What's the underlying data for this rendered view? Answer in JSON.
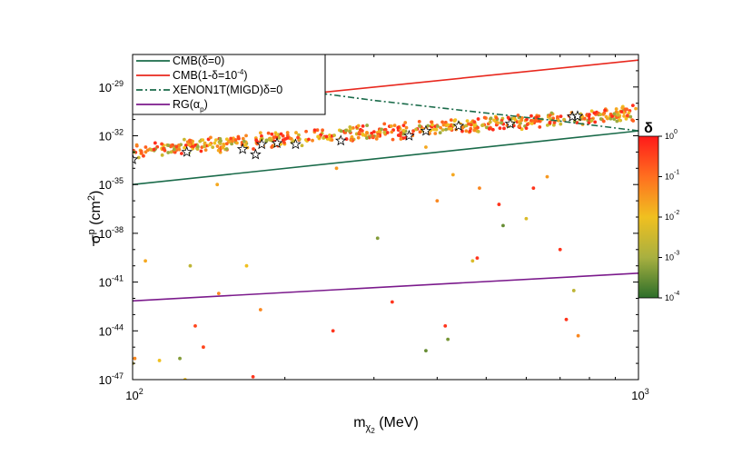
{
  "chart_data": {
    "type": "scatter",
    "title": "",
    "xlabel": {
      "base": "m",
      "sub1": "χ",
      "sub2": "2",
      "rest": " (MeV)"
    },
    "ylabel": {
      "main": "σ",
      "sup": "p",
      "rest": " (cm",
      "unit_sup": "2",
      "close": ")"
    },
    "x_scale": "log",
    "y_scale": "log",
    "xlim": [
      100,
      1000
    ],
    "ylim": [
      1e-47,
      1e-27
    ],
    "x_ticks": [
      {
        "value": 100,
        "base": "10",
        "exp": "2"
      },
      {
        "value": 1000,
        "base": "10",
        "exp": "3"
      }
    ],
    "y_ticks": [
      {
        "value": 1e-47,
        "base": "10",
        "exp": "-47"
      },
      {
        "value": 1e-44,
        "base": "10",
        "exp": "-44"
      },
      {
        "value": 1e-41,
        "base": "10",
        "exp": "-41"
      },
      {
        "value": 1e-38,
        "base": "10",
        "exp": "-38"
      },
      {
        "value": 1e-35,
        "base": "10",
        "exp": "-35"
      },
      {
        "value": 1e-32,
        "base": "10",
        "exp": "-32"
      },
      {
        "value": 1e-29,
        "base": "10",
        "exp": "-29"
      }
    ],
    "grid": false,
    "legend_position": "top-left",
    "lines": [
      {
        "name": {
          "main": "CMB(δ=0)"
        },
        "color": "#1a6b4a",
        "dash": "solid",
        "x": [
          100,
          1000
        ],
        "y": [
          1e-35,
          2e-32
        ]
      },
      {
        "name": {
          "main": "CMB(1-δ=10",
          "sup": "-4",
          "close": ")"
        },
        "color": "#e8281e",
        "dash": "solid",
        "x": [
          100,
          1000
        ],
        "y": [
          3e-31,
          4.5e-28
        ]
      },
      {
        "name": {
          "main": "XENON1T(MIGD)δ=0"
        },
        "color": "#1a6b4a",
        "dash": "dashdot",
        "x": [
          100,
          200,
          300,
          500,
          700,
          1000
        ],
        "y": [
          3e-28,
          8e-30,
          1.5e-30,
          2.5e-31,
          8e-32,
          2e-32
        ]
      },
      {
        "name": {
          "main": "RG(α",
          "sub": "p",
          "close": ")"
        },
        "color": "#7b1a8c",
        "dash": "solid",
        "x": [
          100,
          1000
        ],
        "y": [
          7e-43,
          3.5e-41
        ]
      }
    ],
    "band": {
      "note": "dense scatter band of points color-coded by δ",
      "x_range": [
        100,
        1000
      ],
      "log_y_center_at_xmin": -32.9,
      "log_y_center_at_xmax": -30.6,
      "log_y_spread": 0.55,
      "count": 600
    },
    "scattered_points": [
      {
        "x": 100,
        "y": 1e-46,
        "delta": 0.002
      },
      {
        "x": 101,
        "y": 2e-46,
        "delta": 0.05
      },
      {
        "x": 106,
        "y": 2e-40,
        "delta": 0.02
      },
      {
        "x": 113,
        "y": 1.5e-46,
        "delta": 0.01
      },
      {
        "x": 124,
        "y": 2e-46,
        "delta": 0.0005
      },
      {
        "x": 127,
        "y": 1e-47,
        "delta": 0.01
      },
      {
        "x": 130,
        "y": 1e-40,
        "delta": 0.002
      },
      {
        "x": 133,
        "y": 2e-44,
        "delta": 0.3
      },
      {
        "x": 138,
        "y": 1e-45,
        "delta": 0.3
      },
      {
        "x": 147,
        "y": 1e-35,
        "delta": 0.02
      },
      {
        "x": 148,
        "y": 2e-42,
        "delta": 0.05
      },
      {
        "x": 168,
        "y": 1e-40,
        "delta": 0.01
      },
      {
        "x": 173,
        "y": 1.5e-47,
        "delta": 0.5
      },
      {
        "x": 179,
        "y": 2e-43,
        "delta": 0.05
      },
      {
        "x": 249,
        "y": 1e-44,
        "delta": 0.5
      },
      {
        "x": 253,
        "y": 1e-34,
        "delta": 0.03
      },
      {
        "x": 305,
        "y": 5e-39,
        "delta": 0.0005
      },
      {
        "x": 326,
        "y": 6e-43,
        "delta": 0.5
      },
      {
        "x": 380,
        "y": 6e-46,
        "delta": 0.0003
      },
      {
        "x": 380,
        "y": 2e-33,
        "delta": 0.02
      },
      {
        "x": 400,
        "y": 1e-36,
        "delta": 0.05
      },
      {
        "x": 415,
        "y": 2e-44,
        "delta": 0.5
      },
      {
        "x": 420,
        "y": 3e-45,
        "delta": 0.0004
      },
      {
        "x": 430,
        "y": 4e-35,
        "delta": 0.02
      },
      {
        "x": 470,
        "y": 2e-40,
        "delta": 0.005
      },
      {
        "x": 480,
        "y": 3e-40,
        "delta": 0.5
      },
      {
        "x": 485,
        "y": 6e-36,
        "delta": 0.05
      },
      {
        "x": 530,
        "y": 6e-37,
        "delta": 0.5
      },
      {
        "x": 540,
        "y": 3e-38,
        "delta": 0.0003
      },
      {
        "x": 600,
        "y": 8e-38,
        "delta": 0.005
      },
      {
        "x": 620,
        "y": 6e-36,
        "delta": 0.5
      },
      {
        "x": 660,
        "y": 3e-35,
        "delta": 0.03
      },
      {
        "x": 700,
        "y": 1e-39,
        "delta": 0.5
      },
      {
        "x": 720,
        "y": 5e-44,
        "delta": 0.5
      },
      {
        "x": 745,
        "y": 3e-42,
        "delta": 0.002
      },
      {
        "x": 760,
        "y": 5e-45,
        "delta": 0.05
      }
    ],
    "stars": [
      {
        "x": 100,
        "y": 3.5e-34
      },
      {
        "x": 128,
        "y": 1e-33
      },
      {
        "x": 165,
        "y": 1.5e-33
      },
      {
        "x": 175,
        "y": 7e-34
      },
      {
        "x": 180,
        "y": 3e-33
      },
      {
        "x": 193,
        "y": 3.5e-33
      },
      {
        "x": 210,
        "y": 3e-33
      },
      {
        "x": 258,
        "y": 5e-33
      },
      {
        "x": 352,
        "y": 1e-32
      },
      {
        "x": 380,
        "y": 2e-32
      },
      {
        "x": 441,
        "y": 4e-32
      },
      {
        "x": 558,
        "y": 5.5e-32
      },
      {
        "x": 740,
        "y": 1.5e-31
      },
      {
        "x": 758,
        "y": 1.6e-31
      }
    ],
    "colorbar": {
      "label": "δ",
      "scale": "log",
      "range": [
        0.0001,
        1
      ],
      "ticks": [
        {
          "value": 1,
          "base": "10",
          "exp": "0"
        },
        {
          "value": 0.1,
          "base": "10",
          "exp": "-1"
        },
        {
          "value": 0.01,
          "base": "10",
          "exp": "-2"
        },
        {
          "value": 0.001,
          "base": "10",
          "exp": "-3"
        },
        {
          "value": 0.0001,
          "base": "10",
          "exp": "-4"
        }
      ],
      "colors": [
        "#ff1a1a",
        "#ff6f1f",
        "#f0c020",
        "#a8b040",
        "#2c6e2a"
      ]
    }
  }
}
